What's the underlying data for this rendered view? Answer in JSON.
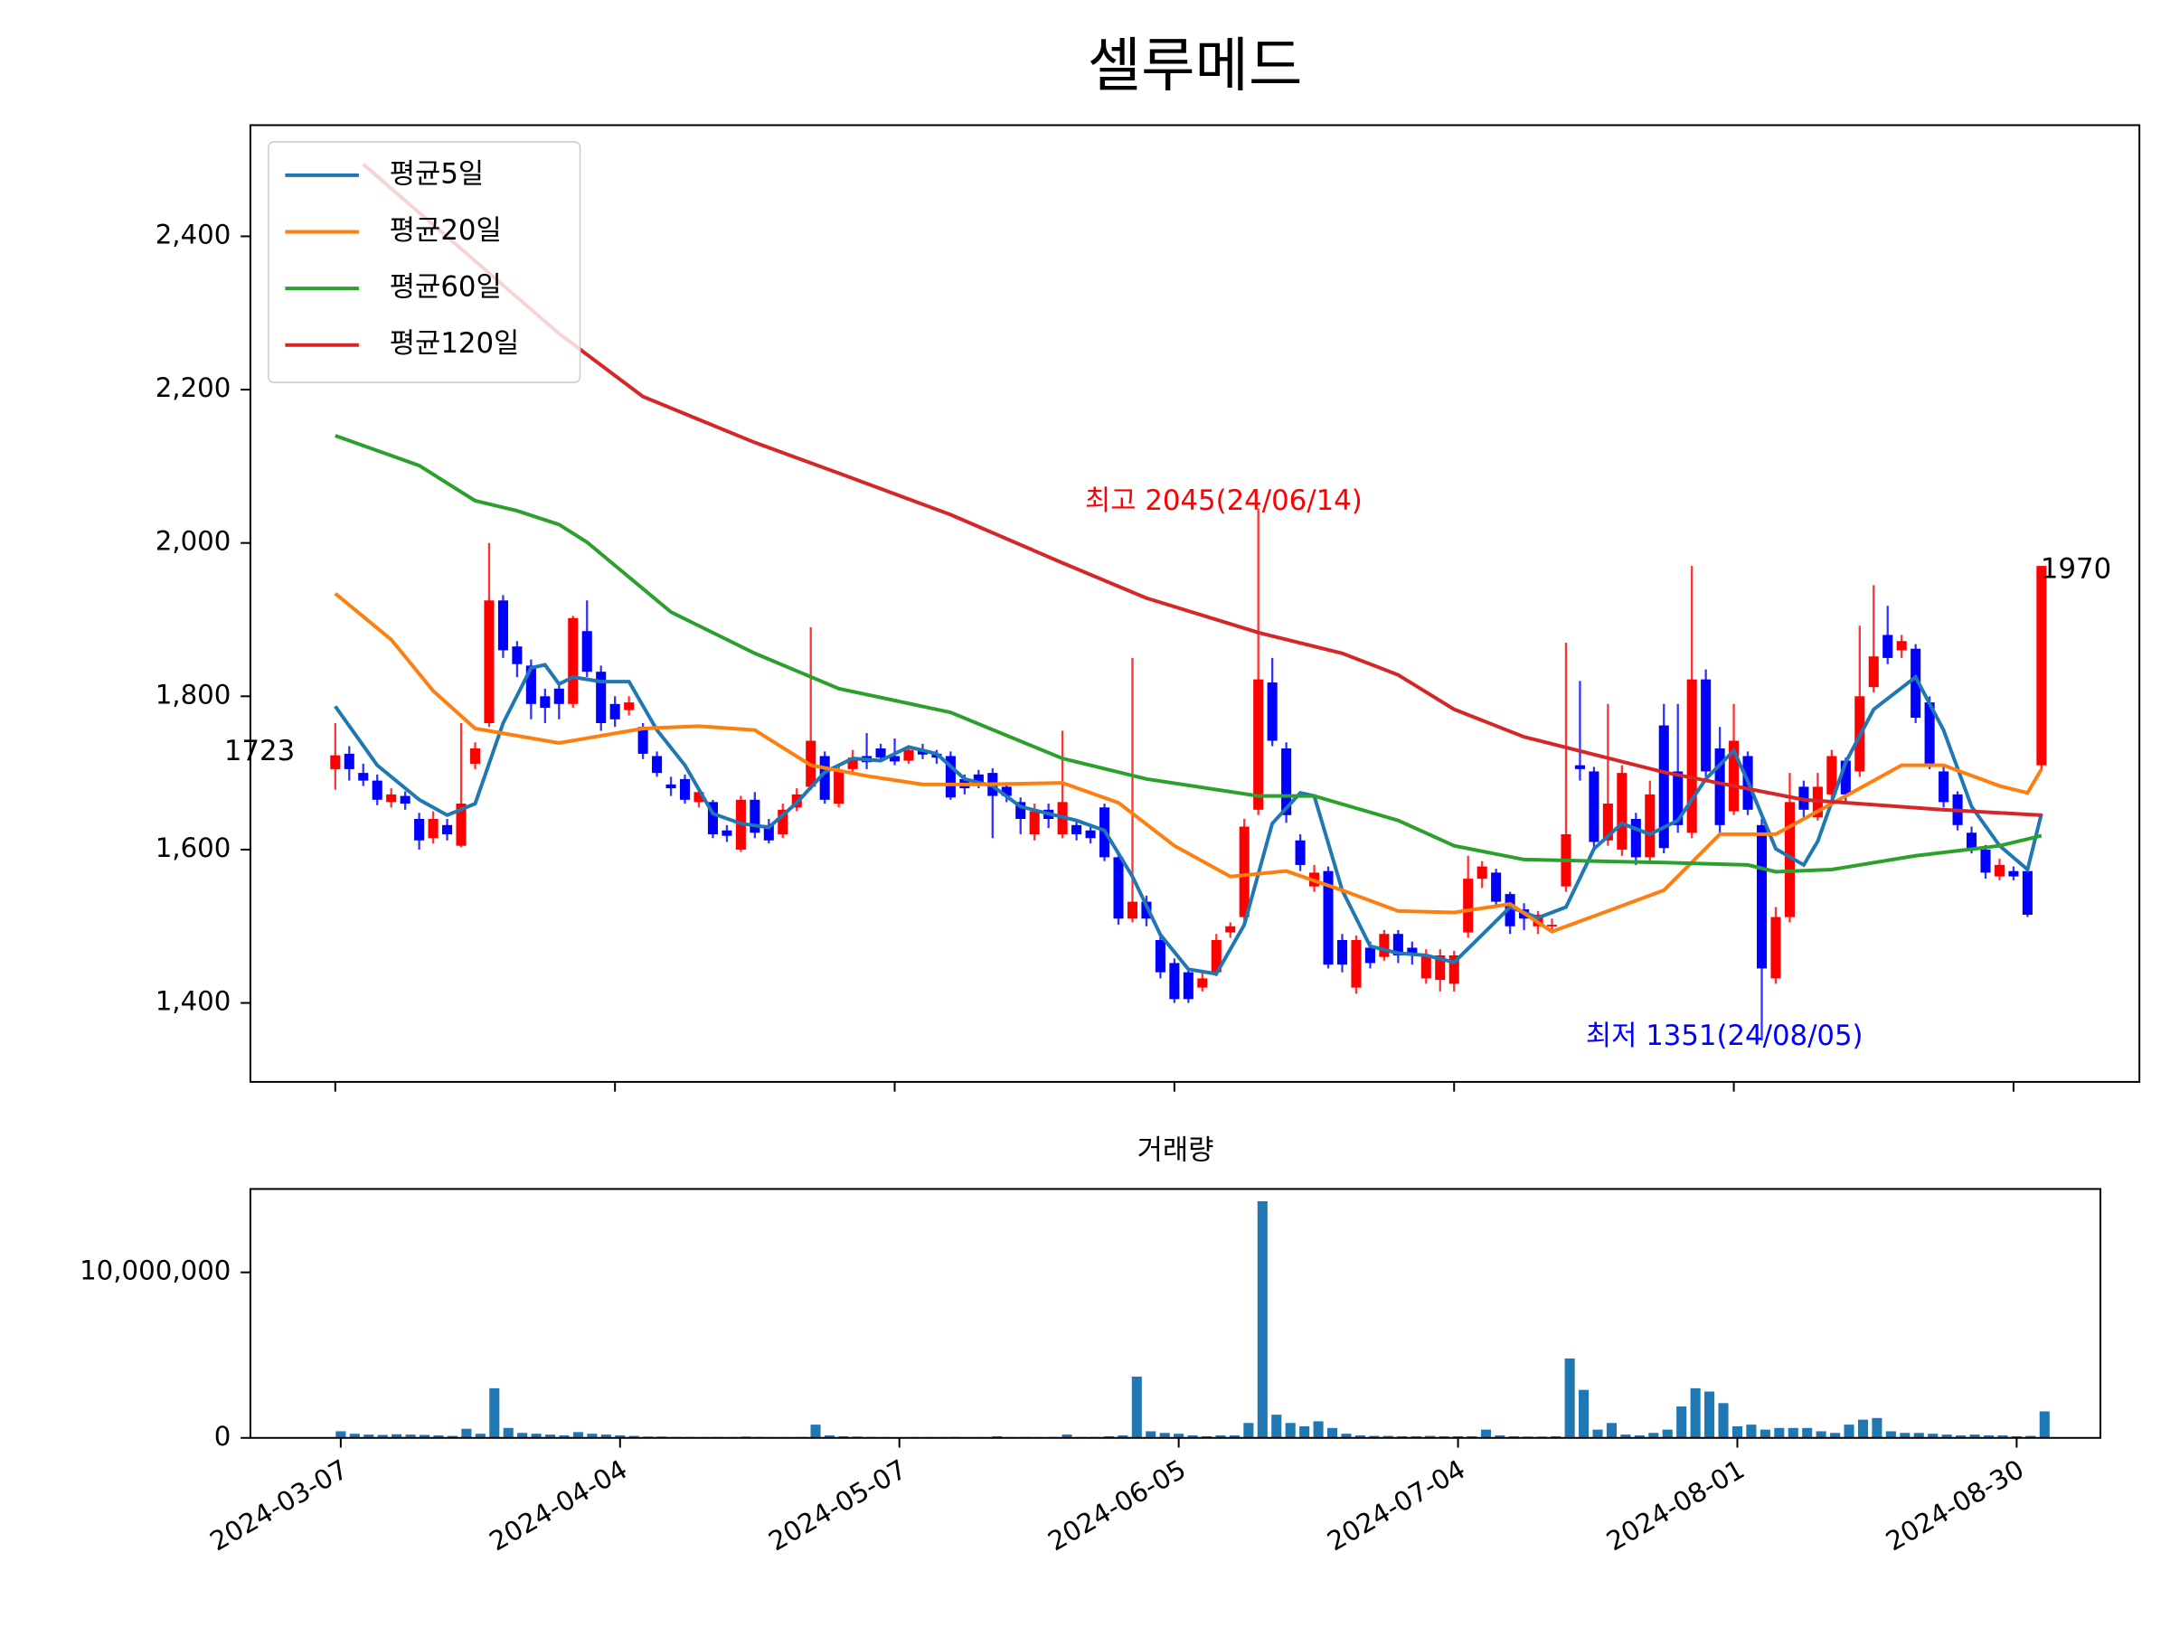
{
  "chart_data": [
    {
      "type": "candlestick",
      "title": "셀루메드",
      "up_color": "#ff0000",
      "down_color": "#0000ff",
      "xlim": [
        -6.07,
        129
      ],
      "xticks": [
        0,
        20,
        40,
        60,
        80,
        100,
        120
      ],
      "ylim": [
        1297,
        2545
      ],
      "yticks": [
        {
          "value": 1400,
          "label": "1,400"
        },
        {
          "value": 1600,
          "label": "1,600"
        },
        {
          "value": 1800,
          "label": "1,800"
        },
        {
          "value": 2000,
          "label": "2,000"
        },
        {
          "value": 2200,
          "label": "2,200"
        },
        {
          "value": 2400,
          "label": "2,400"
        }
      ],
      "legend": "upper left",
      "open": [
        1705,
        1725,
        1700,
        1690,
        1662,
        1670,
        1640,
        1615,
        1632,
        1605,
        1712,
        1765,
        1925,
        1865,
        1840,
        1800,
        1810,
        1790,
        1885,
        1832,
        1790,
        1782,
        1760,
        1722,
        1685,
        1692,
        1662,
        1662,
        1625,
        1600,
        1665,
        1632,
        1620,
        1655,
        1682,
        1722,
        1660,
        1705,
        1722,
        1732,
        1722,
        1716,
        1730,
        1725,
        1722,
        1692,
        1698,
        1700,
        1682,
        1662,
        1620,
        1652,
        1620,
        1632,
        1625,
        1655,
        1590,
        1510,
        1532,
        1482,
        1452,
        1440,
        1420,
        1440,
        1492,
        1512,
        1652,
        1818,
        1732,
        1612,
        1552,
        1572,
        1482,
        1420,
        1472,
        1460,
        1490,
        1472,
        1432,
        1430,
        1425,
        1492,
        1562,
        1570,
        1542,
        1522,
        1500,
        1500,
        1552,
        1710,
        1702,
        1612,
        1600,
        1640,
        1590,
        1762,
        1702,
        1622,
        1822,
        1732,
        1650,
        1722,
        1632,
        1432,
        1512,
        1682,
        1642,
        1672,
        1716,
        1702,
        1812,
        1880,
        1860,
        1862,
        1792,
        1702,
        1672,
        1622,
        1600,
        1565,
        1572,
        1572,
        1710
      ],
      "high": [
        1765,
        1735,
        1712,
        1698,
        1680,
        1676,
        1648,
        1650,
        1640,
        1765,
        1740,
        2000,
        1932,
        1872,
        1848,
        1810,
        1818,
        1905,
        1925,
        1840,
        1800,
        1800,
        1765,
        1728,
        1695,
        1698,
        1680,
        1665,
        1632,
        1670,
        1675,
        1640,
        1660,
        1680,
        1890,
        1728,
        1712,
        1730,
        1752,
        1738,
        1745,
        1736,
        1738,
        1730,
        1728,
        1698,
        1704,
        1706,
        1688,
        1668,
        1660,
        1660,
        1755,
        1640,
        1632,
        1660,
        1598,
        1850,
        1540,
        1490,
        1458,
        1445,
        1440,
        1490,
        1505,
        1640,
        2045,
        1850,
        1740,
        1620,
        1580,
        1578,
        1490,
        1488,
        1480,
        1495,
        1495,
        1480,
        1470,
        1470,
        1468,
        1592,
        1585,
        1575,
        1545,
        1530,
        1520,
        1510,
        1870,
        1820,
        1708,
        1790,
        1710,
        1648,
        1690,
        1790,
        1790,
        1970,
        1835,
        1760,
        1790,
        1728,
        1640,
        1525,
        1700,
        1690,
        1700,
        1730,
        1720,
        1892,
        1945,
        1918,
        1880,
        1868,
        1800,
        1710,
        1676,
        1630,
        1606,
        1588,
        1578,
        1576,
        1970
      ],
      "low": [
        1678,
        1690,
        1683,
        1658,
        1655,
        1652,
        1600,
        1608,
        1612,
        1603,
        1705,
        1760,
        1850,
        1825,
        1770,
        1765,
        1770,
        1785,
        1825,
        1755,
        1760,
        1775,
        1718,
        1695,
        1670,
        1660,
        1655,
        1615,
        1610,
        1597,
        1615,
        1608,
        1615,
        1650,
        1678,
        1660,
        1655,
        1700,
        1705,
        1715,
        1710,
        1712,
        1718,
        1712,
        1665,
        1672,
        1680,
        1615,
        1662,
        1620,
        1612,
        1628,
        1615,
        1612,
        1608,
        1585,
        1502,
        1505,
        1500,
        1432,
        1400,
        1400,
        1415,
        1435,
        1485,
        1505,
        1645,
        1735,
        1635,
        1572,
        1545,
        1445,
        1440,
        1412,
        1445,
        1455,
        1452,
        1450,
        1425,
        1415,
        1415,
        1485,
        1550,
        1525,
        1490,
        1495,
        1490,
        1492,
        1545,
        1690,
        1600,
        1605,
        1592,
        1580,
        1585,
        1595,
        1622,
        1615,
        1695,
        1622,
        1645,
        1645,
        1351,
        1425,
        1505,
        1640,
        1638,
        1665,
        1660,
        1695,
        1805,
        1842,
        1850,
        1765,
        1705,
        1655,
        1625,
        1595,
        1562,
        1560,
        1560,
        1512,
        1705
      ],
      "close": [
        1723,
        1705,
        1690,
        1665,
        1672,
        1660,
        1612,
        1640,
        1620,
        1660,
        1732,
        1925,
        1860,
        1842,
        1790,
        1785,
        1790,
        1902,
        1832,
        1765,
        1770,
        1792,
        1725,
        1700,
        1680,
        1665,
        1675,
        1620,
        1618,
        1665,
        1622,
        1612,
        1652,
        1672,
        1742,
        1665,
        1702,
        1720,
        1714,
        1720,
        1715,
        1730,
        1724,
        1720,
        1668,
        1680,
        1688,
        1670,
        1670,
        1640,
        1650,
        1640,
        1662,
        1620,
        1615,
        1590,
        1510,
        1532,
        1510,
        1440,
        1405,
        1405,
        1432,
        1482,
        1500,
        1630,
        1822,
        1742,
        1645,
        1580,
        1570,
        1450,
        1450,
        1482,
        1452,
        1490,
        1462,
        1465,
        1462,
        1462,
        1462,
        1562,
        1578,
        1532,
        1500,
        1510,
        1515,
        1502,
        1620,
        1705,
        1610,
        1660,
        1700,
        1590,
        1672,
        1602,
        1632,
        1822,
        1702,
        1632,
        1742,
        1652,
        1445,
        1512,
        1662,
        1652,
        1682,
        1722,
        1672,
        1800,
        1852,
        1850,
        1872,
        1772,
        1712,
        1662,
        1632,
        1602,
        1570,
        1580,
        1565,
        1515,
        1970
      ],
      "series": [
        {
          "name": "평균5일",
          "color": "#1f77b4",
          "x": [
            0,
            3,
            6,
            8,
            10,
            12,
            14,
            15,
            16,
            17,
            19,
            21,
            23,
            25,
            27,
            29,
            31,
            33,
            35,
            37,
            39,
            41,
            43,
            45,
            47,
            49,
            51,
            53,
            55,
            57,
            59,
            61,
            63,
            65,
            67,
            69,
            70,
            72,
            74,
            76,
            78,
            80,
            82,
            84,
            86,
            88,
            90,
            92,
            94,
            96,
            98,
            100,
            101,
            103,
            105,
            106,
            108,
            110,
            113,
            115,
            117,
            119,
            121,
            122
          ],
          "values": [
            1787,
            1710,
            1665,
            1645,
            1660,
            1765,
            1837,
            1841,
            1816,
            1825,
            1819,
            1819,
            1756,
            1710,
            1647,
            1634,
            1629,
            1661,
            1701,
            1719,
            1716,
            1734,
            1725,
            1692,
            1683,
            1656,
            1647,
            1638,
            1625,
            1565,
            1489,
            1444,
            1438,
            1502,
            1634,
            1674,
            1670,
            1547,
            1474,
            1465,
            1462,
            1453,
            1489,
            1525,
            1511,
            1525,
            1601,
            1634,
            1620,
            1638,
            1692,
            1729,
            1689,
            1601,
            1580,
            1611,
            1714,
            1783,
            1825,
            1756,
            1656,
            1605,
            1574,
            1647
          ]
        },
        {
          "name": "평균20일",
          "color": "#ff7f0e",
          "x": [
            0,
            4,
            7,
            10,
            16,
            22,
            26,
            30,
            34,
            38,
            42,
            46,
            52,
            56,
            60,
            64,
            68,
            72,
            76,
            80,
            84,
            87,
            91,
            95,
            99,
            103,
            108,
            112,
            115,
            119,
            121,
            122
          ],
          "values": [
            1934,
            1874,
            1807,
            1758,
            1739,
            1758,
            1761,
            1756,
            1710,
            1696,
            1685,
            1685,
            1687,
            1661,
            1605,
            1565,
            1572,
            1547,
            1520,
            1518,
            1529,
            1493,
            1520,
            1547,
            1620,
            1620,
            1670,
            1710,
            1710,
            1683,
            1674,
            1705
          ]
        },
        {
          "name": "평균60일",
          "color": "#2ca02c",
          "x": [
            0,
            6,
            10,
            13,
            16,
            18,
            24,
            30,
            36,
            44,
            52,
            58,
            66,
            70,
            76,
            80,
            85,
            95,
            101,
            103,
            107,
            113,
            119,
            122
          ],
          "values": [
            2140,
            2101,
            2055,
            2042,
            2024,
            2001,
            1910,
            1856,
            1810,
            1779,
            1719,
            1692,
            1670,
            1670,
            1638,
            1605,
            1587,
            1583,
            1580,
            1571,
            1574,
            1592,
            1605,
            1618
          ]
        },
        {
          "name": "평균120일",
          "color": "#d62728",
          "x": [
            2,
            16,
            22,
            30,
            36,
            44,
            52,
            58,
            66,
            72,
            76,
            80,
            85,
            95,
            105,
            115,
            122
          ],
          "values": [
            2494,
            2273,
            2191,
            2131,
            2091,
            2037,
            1974,
            1928,
            1883,
            1856,
            1828,
            1783,
            1747,
            1701,
            1665,
            1652,
            1645
          ]
        }
      ],
      "annotations": [
        {
          "text": "최고 2045(24/06/14)",
          "color": "#ff0000"
        },
        {
          "text": "최저 1351(24/08/05)",
          "color": "#0000ff"
        },
        {
          "text": "1723"
        },
        {
          "text": "1970"
        }
      ]
    },
    {
      "type": "bar",
      "title": "거래량",
      "color": "#1f77b4",
      "xlim": [
        -6.47,
        126
      ],
      "ylim": [
        0,
        15040000
      ],
      "yticks": [
        0,
        {
          "value": 10000000,
          "label": "10,000,000"
        }
      ],
      "categories": [
        "2024-03-07",
        null,
        null,
        null,
        null,
        null,
        null,
        null,
        null,
        null,
        null,
        null,
        null,
        null,
        null,
        null,
        null,
        null,
        null,
        null,
        "2024-04-04",
        null,
        null,
        null,
        null,
        null,
        null,
        null,
        null,
        null,
        null,
        null,
        null,
        null,
        null,
        null,
        null,
        null,
        null,
        null,
        "2024-05-07",
        null,
        null,
        null,
        null,
        null,
        null,
        null,
        null,
        null,
        null,
        null,
        null,
        null,
        null,
        null,
        null,
        null,
        null,
        null,
        "2024-06-05",
        null,
        null,
        null,
        null,
        null,
        null,
        null,
        null,
        null,
        null,
        null,
        null,
        null,
        null,
        null,
        null,
        null,
        null,
        null,
        "2024-07-04",
        null,
        null,
        null,
        null,
        null,
        null,
        null,
        null,
        null,
        null,
        null,
        null,
        null,
        null,
        null,
        null,
        null,
        null,
        null,
        "2024-08-01",
        null,
        null,
        null,
        null,
        null,
        null,
        null,
        null,
        null,
        null,
        null,
        null,
        null,
        null,
        null,
        null,
        null,
        null,
        null,
        "2024-08-30",
        null,
        null
      ],
      "values": [
        400000,
        250000,
        200000,
        180000,
        220000,
        200000,
        180000,
        150000,
        120000,
        550000,
        250000,
        3000000,
        600000,
        300000,
        250000,
        200000,
        150000,
        350000,
        250000,
        200000,
        150000,
        120000,
        80000,
        80000,
        60000,
        60000,
        50000,
        60000,
        50000,
        80000,
        60000,
        50000,
        50000,
        60000,
        800000,
        150000,
        100000,
        80000,
        60000,
        50000,
        40000,
        50000,
        50000,
        50000,
        60000,
        50000,
        50000,
        100000,
        50000,
        60000,
        50000,
        60000,
        200000,
        60000,
        60000,
        100000,
        150000,
        3700000,
        400000,
        300000,
        250000,
        150000,
        100000,
        150000,
        150000,
        900000,
        14300000,
        1400000,
        900000,
        700000,
        1000000,
        600000,
        250000,
        150000,
        120000,
        120000,
        100000,
        100000,
        120000,
        100000,
        100000,
        100000,
        500000,
        150000,
        100000,
        80000,
        80000,
        100000,
        4800000,
        2900000,
        500000,
        900000,
        200000,
        150000,
        300000,
        500000,
        1900000,
        3000000,
        2800000,
        2100000,
        700000,
        800000,
        500000,
        600000,
        600000,
        600000,
        400000,
        300000,
        800000,
        1100000,
        1200000,
        400000,
        300000,
        300000,
        250000,
        200000,
        150000,
        200000,
        150000,
        150000,
        100000,
        120000,
        1600000
      ]
    }
  ]
}
